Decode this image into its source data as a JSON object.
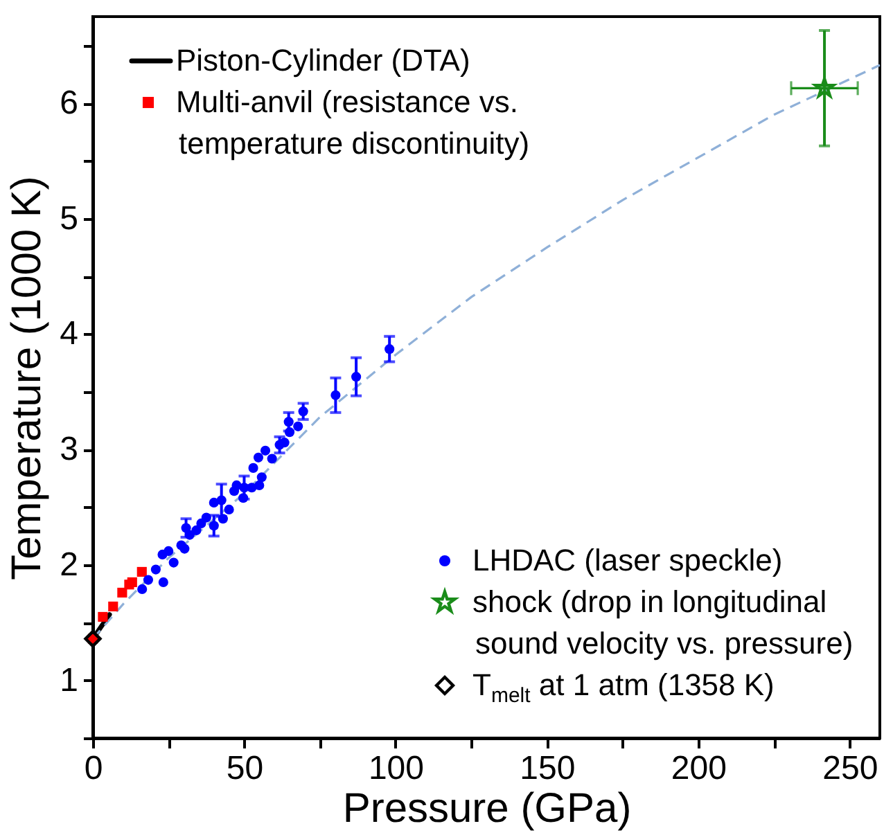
{
  "chart_data": {
    "type": "scatter",
    "xlabel": "Pressure (GPa)",
    "ylabel": "Temperature (1000 K)",
    "xlim": [
      0,
      260
    ],
    "ylim": [
      0.5,
      6.75
    ],
    "xticks": [
      0,
      {
        "value": 25,
        "label": null
      },
      50,
      {
        "value": 75,
        "label": null
      },
      100,
      {
        "value": 125,
        "label": null
      },
      150,
      {
        "value": 175,
        "label": null
      },
      200,
      {
        "value": 225,
        "label": null
      },
      250
    ],
    "yticks": [
      {
        "value": 0.5,
        "label": null
      },
      1,
      {
        "value": 1.5,
        "label": null
      },
      2,
      {
        "value": 2.5,
        "label": null
      },
      3,
      {
        "value": 3.5,
        "label": null
      },
      4,
      {
        "value": 4.5,
        "label": null
      },
      5,
      {
        "value": 5.5,
        "label": null
      },
      6,
      {
        "value": 6.5,
        "label": null
      }
    ],
    "legend": "top left",
    "grid": false,
    "series": [
      {
        "name": "Piston-Cylinder (DTA)",
        "type": "line",
        "color": "#000000",
        "line_style": "solid",
        "marker": "none",
        "x": [
          0,
          5.5
        ],
        "values": [
          1.36,
          1.57
        ]
      },
      {
        "name": "Multi-anvil (resistance vs. temperature discontinuity)",
        "type": "scatter",
        "marker": "square",
        "color": "#ff0000",
        "x": [
          0,
          3.3,
          6.7,
          9.7,
          12,
          13,
          16.2
        ],
        "values": [
          1.36,
          1.55,
          1.64,
          1.76,
          1.83,
          1.85,
          1.94
        ]
      },
      {
        "name": "LHDAC (laser speckle)",
        "type": "scatter",
        "marker": "circle",
        "color": "#0000ff",
        "x": [
          16.3,
          18.3,
          20.8,
          23.3,
          23,
          25,
          26.7,
          29.2,
          30.3,
          30.8,
          32,
          34.2,
          35.8,
          37.5,
          40,
          40,
          42.5,
          43,
          45,
          46.7,
          47.5,
          49.7,
          50,
          52.5,
          53,
          55,
          55.8,
          54.7,
          57,
          59.2,
          61.7,
          63.3,
          65,
          64.7,
          67.8,
          69.5,
          80.2,
          87,
          98
        ],
        "values": [
          1.79,
          1.87,
          1.96,
          1.85,
          2.09,
          2.12,
          2.02,
          2.17,
          2.14,
          2.32,
          2.26,
          2.3,
          2.36,
          2.41,
          2.34,
          2.54,
          2.56,
          2.4,
          2.48,
          2.64,
          2.69,
          2.58,
          2.67,
          2.67,
          2.84,
          2.69,
          2.76,
          2.93,
          2.99,
          2.92,
          3.04,
          3.06,
          3.15,
          3.24,
          3.2,
          3.33,
          3.47,
          3.63,
          3.87
        ],
        "errors": [
          null,
          null,
          null,
          null,
          null,
          null,
          null,
          null,
          null,
          0.08,
          null,
          null,
          null,
          null,
          0.09,
          null,
          0.14,
          null,
          null,
          null,
          null,
          null,
          0.1,
          null,
          null,
          null,
          null,
          null,
          null,
          null,
          0.07,
          null,
          null,
          0.08,
          null,
          0.07,
          0.15,
          0.165,
          0.11
        ]
      },
      {
        "name": "shock (drop in longitudinal sound velocity vs. pressure)",
        "type": "scatter",
        "marker": "star",
        "color": "#1a8c1a",
        "x": [
          241.7
        ],
        "values": [
          6.13
        ],
        "errors": [
          0.5
        ],
        "xerrors": [
          11
        ]
      },
      {
        "name": "T$_{melt}$ at 1 atm (1358 K)",
        "type": "scatter",
        "marker": "diamond",
        "color": "#000000",
        "x": [
          0
        ],
        "values": [
          1.36
        ]
      },
      {
        "type": "line",
        "color": "#8fb0d8",
        "line_style": "dashed",
        "marker": "none",
        "x": [
          0,
          10,
          25,
          50,
          75,
          100,
          125,
          150,
          175,
          200,
          225,
          260
        ],
        "values": [
          1.36,
          1.66,
          2.06,
          2.62,
          3.28,
          3.82,
          4.32,
          4.75,
          5.16,
          5.53,
          5.9,
          6.33
        ]
      }
    ]
  }
}
